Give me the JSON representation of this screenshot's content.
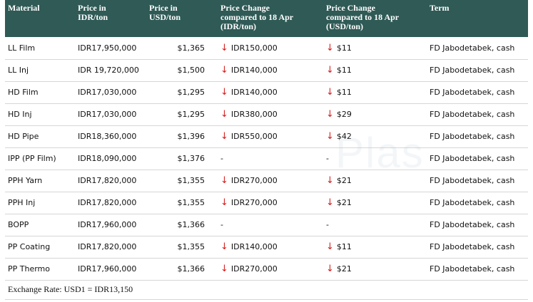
{
  "headers": {
    "material": "Material",
    "price_idr": [
      "Price in",
      "IDR/ton"
    ],
    "price_usd": [
      "Price in",
      "USD/ton"
    ],
    "change_idr": [
      "Price Change",
      "compared to 18 Apr",
      "(IDR/ton)"
    ],
    "change_usd": [
      "Price Change",
      "compared to 18 Apr",
      "(USD/ton)"
    ],
    "term": "Term"
  },
  "rows": [
    {
      "material": "LL Film",
      "idr": "IDR17,950,000",
      "usd": "$1,365",
      "chg_idr": "IDR150,000",
      "chg_usd": "$11",
      "down": true,
      "term": "FD Jabodetabek, cash"
    },
    {
      "material": "LL Inj",
      "idr": "IDR 19,720,000",
      "usd": "$1,500",
      "chg_idr": "IDR140,000",
      "chg_usd": "$11",
      "down": true,
      "term": "FD Jabodetabek, cash"
    },
    {
      "material": "HD Film",
      "idr": "IDR17,030,000",
      "usd": "$1,295",
      "chg_idr": "IDR140,000",
      "chg_usd": "$11",
      "down": true,
      "term": "FD Jabodetabek, cash"
    },
    {
      "material": "HD Inj",
      "idr": "IDR17,030,000",
      "usd": "$1,295",
      "chg_idr": "IDR380,000",
      "chg_usd": "$29",
      "down": true,
      "term": "FD Jabodetabek, cash"
    },
    {
      "material": "HD Pipe",
      "idr": "IDR18,360,000",
      "usd": "$1,396",
      "chg_idr": "IDR550,000",
      "chg_usd": "$42",
      "down": true,
      "term": "FD Jabodetabek, cash"
    },
    {
      "material": "IPP (PP Film)",
      "idr": "IDR18,090,000",
      "usd": "$1,376",
      "chg_idr": "-",
      "chg_usd": "-",
      "down": false,
      "term": "FD Jabodetabek, cash"
    },
    {
      "material": "PPH Yarn",
      "idr": "IDR17,820,000",
      "usd": "$1,355",
      "chg_idr": "IDR270,000",
      "chg_usd": "$21",
      "down": true,
      "term": "FD Jabodetabek, cash"
    },
    {
      "material": "PPH Inj",
      "idr": "IDR17,820,000",
      "usd": "$1,355",
      "chg_idr": "IDR270,000",
      "chg_usd": "$21",
      "down": true,
      "term": "FD Jabodetabek, cash"
    },
    {
      "material": "BOPP",
      "idr": "IDR17,960,000",
      "usd": "$1,366",
      "chg_idr": "-",
      "chg_usd": "-",
      "down": false,
      "term": "FD Jabodetabek, cash"
    },
    {
      "material": "PP Coating",
      "idr": "IDR17,820,000",
      "usd": "$1,355",
      "chg_idr": "IDR140,000",
      "chg_usd": "$11",
      "down": true,
      "term": "FD Jabodetabek, cash"
    },
    {
      "material": "PP Thermo",
      "idr": "IDR17,960,000",
      "usd": "$1,366",
      "chg_idr": "IDR270,000",
      "chg_usd": "$21",
      "down": true,
      "term": "FD Jabodetabek, cash"
    }
  ],
  "down_arrow": "↓",
  "footer": "Exchange Rate: USD1 = IDR13,150",
  "watermark": "Plas",
  "colors": {
    "header_bg": "#2f5a56",
    "header_text": "#ffffff",
    "arrow": "#d81e1e"
  }
}
